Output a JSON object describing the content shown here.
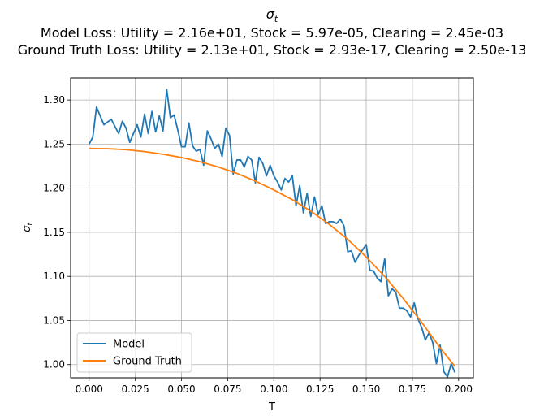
{
  "chart_data": {
    "type": "line",
    "title_symbol": "σ",
    "title_subscript": "t",
    "subtitle_1": "Model Loss: Utility = 2.16e+01, Stock = 5.97e-05, Clearing = 2.45e-03",
    "subtitle_2": "Ground Truth Loss: Utility = 2.13e+01, Stock = 2.93e-17, Clearing = 2.50e-13",
    "xlabel": "T",
    "ylabel_symbol": "σ",
    "ylabel_subscript": "t",
    "xlim": [
      -0.01,
      0.208
    ],
    "ylim": [
      0.985,
      1.325
    ],
    "xticks": [
      0.0,
      0.025,
      0.05,
      0.075,
      0.1,
      0.125,
      0.15,
      0.175,
      0.2
    ],
    "xtick_labels": [
      "0.000",
      "0.025",
      "0.050",
      "0.075",
      "0.100",
      "0.125",
      "0.150",
      "0.175",
      "0.200"
    ],
    "yticks": [
      1.0,
      1.05,
      1.1,
      1.15,
      1.2,
      1.25,
      1.3
    ],
    "ytick_labels": [
      "1.00",
      "1.05",
      "1.10",
      "1.15",
      "1.20",
      "1.25",
      "1.30"
    ],
    "grid": true,
    "legend_position": "lower-left",
    "series": [
      {
        "name": "Model",
        "color": "#1f77b4",
        "x": [
          0.0,
          0.002,
          0.004,
          0.006,
          0.008,
          0.01,
          0.012,
          0.014,
          0.016,
          0.018,
          0.02,
          0.022,
          0.024,
          0.026,
          0.028,
          0.03,
          0.032,
          0.034,
          0.036,
          0.038,
          0.04,
          0.042,
          0.044,
          0.046,
          0.048,
          0.05,
          0.052,
          0.054,
          0.056,
          0.058,
          0.06,
          0.062,
          0.064,
          0.066,
          0.068,
          0.07,
          0.072,
          0.074,
          0.076,
          0.078,
          0.08,
          0.082,
          0.084,
          0.086,
          0.088,
          0.09,
          0.092,
          0.094,
          0.096,
          0.098,
          0.1,
          0.102,
          0.104,
          0.106,
          0.108,
          0.11,
          0.112,
          0.114,
          0.116,
          0.118,
          0.12,
          0.122,
          0.124,
          0.126,
          0.128,
          0.13,
          0.132,
          0.134,
          0.136,
          0.138,
          0.14,
          0.142,
          0.144,
          0.146,
          0.148,
          0.15,
          0.152,
          0.154,
          0.156,
          0.158,
          0.16,
          0.162,
          0.164,
          0.166,
          0.168,
          0.17,
          0.172,
          0.174,
          0.176,
          0.178,
          0.18,
          0.182,
          0.184,
          0.186,
          0.188,
          0.19,
          0.192,
          0.194,
          0.196,
          0.198
        ],
        "y": [
          1.25,
          1.258,
          1.292,
          1.282,
          1.272,
          1.275,
          1.278,
          1.27,
          1.262,
          1.276,
          1.268,
          1.252,
          1.262,
          1.272,
          1.258,
          1.284,
          1.262,
          1.287,
          1.264,
          1.282,
          1.265,
          1.312,
          1.28,
          1.283,
          1.266,
          1.247,
          1.247,
          1.274,
          1.248,
          1.242,
          1.244,
          1.226,
          1.265,
          1.256,
          1.245,
          1.25,
          1.236,
          1.268,
          1.26,
          1.216,
          1.232,
          1.232,
          1.224,
          1.236,
          1.232,
          1.206,
          1.235,
          1.228,
          1.214,
          1.226,
          1.214,
          1.207,
          1.198,
          1.211,
          1.207,
          1.214,
          1.18,
          1.203,
          1.172,
          1.194,
          1.168,
          1.19,
          1.17,
          1.18,
          1.16,
          1.162,
          1.162,
          1.16,
          1.165,
          1.157,
          1.128,
          1.129,
          1.116,
          1.124,
          1.13,
          1.136,
          1.107,
          1.106,
          1.098,
          1.094,
          1.12,
          1.078,
          1.086,
          1.082,
          1.064,
          1.064,
          1.061,
          1.054,
          1.07,
          1.052,
          1.042,
          1.028,
          1.036,
          1.025,
          1.001,
          1.022,
          0.992,
          0.986,
          1.001,
          0.991
        ]
      },
      {
        "name": "Ground Truth",
        "color": "#ff7f0e",
        "x": [
          0.0,
          0.01,
          0.02,
          0.03,
          0.04,
          0.05,
          0.06,
          0.07,
          0.08,
          0.09,
          0.1,
          0.11,
          0.12,
          0.13,
          0.14,
          0.15,
          0.16,
          0.17,
          0.18,
          0.19,
          0.198
        ],
        "y": [
          1.245,
          1.2448,
          1.2437,
          1.2415,
          1.2385,
          1.2348,
          1.23,
          1.224,
          1.2168,
          1.208,
          1.198,
          1.187,
          1.174,
          1.159,
          1.142,
          1.122,
          1.1,
          1.075,
          1.048,
          1.019,
          0.998
        ]
      }
    ]
  }
}
